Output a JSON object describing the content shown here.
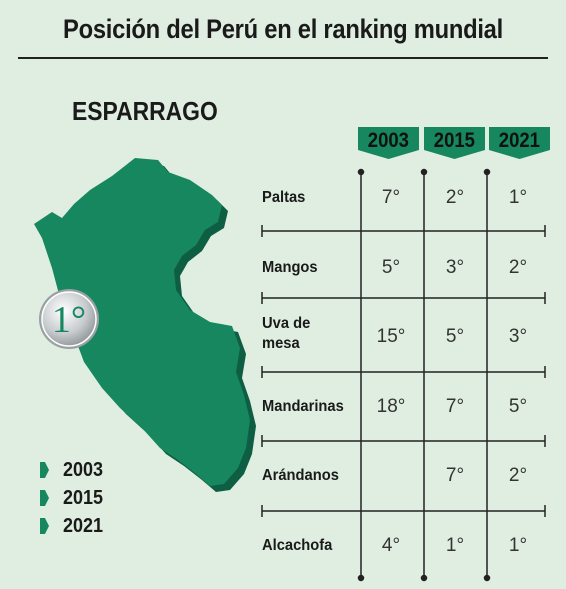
{
  "title": "Posición del Perú en el ranking mundial",
  "product": "ESPARRAGO",
  "medal_rank": "1°",
  "years": [
    "2003",
    "2015",
    "2021"
  ],
  "legend": [
    {
      "label": "2003",
      "color": "#16875f"
    },
    {
      "label": "2015",
      "color": "#16875f"
    },
    {
      "label": "2021",
      "color": "#16875f"
    }
  ],
  "rows": [
    {
      "label_line1": "Paltas",
      "label_line2": "",
      "values": [
        "7°",
        "2°",
        "1°"
      ]
    },
    {
      "label_line1": "Mangos",
      "label_line2": "",
      "values": [
        "5°",
        "3°",
        "2°"
      ]
    },
    {
      "label_line1": "Uva de",
      "label_line2": "mesa",
      "values": [
        "15°",
        "5°",
        "3°"
      ]
    },
    {
      "label_line1": "Mandarinas",
      "label_line2": "",
      "values": [
        "18°",
        "7°",
        "5°"
      ]
    },
    {
      "label_line1": "Arándanos",
      "label_line2": "",
      "values": [
        "",
        "7°",
        "2°"
      ]
    },
    {
      "label_line1": "Alcachofa",
      "label_line2": "",
      "values": [
        "4°",
        "1°",
        "1°"
      ]
    }
  ],
  "colors": {
    "accent": "#16875f",
    "background": "#dfeee0"
  }
}
